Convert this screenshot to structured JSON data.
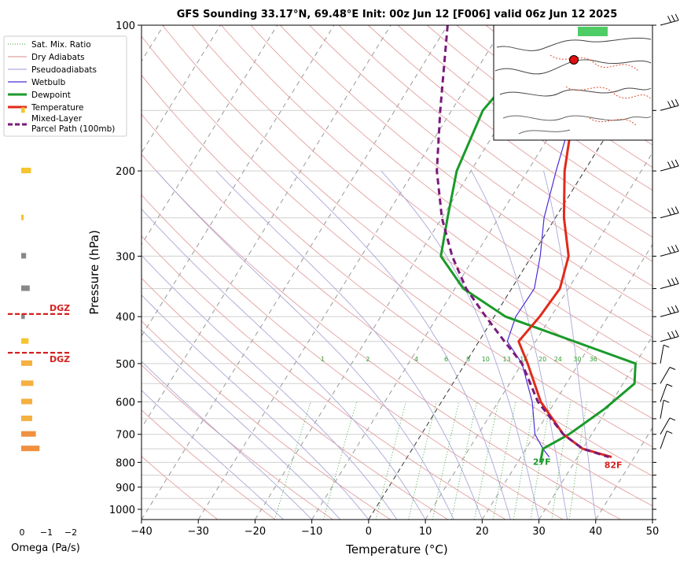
{
  "chart_data": {
    "type": "line",
    "chart_kind": "skew-T log-P sounding",
    "title": "GFS Sounding 33.17°N, 69.48°E Init: 00z Jun 12 [F006] valid 06z Jun 12 2025",
    "xlabel": "Temperature (°C)",
    "ylabel": "Pressure (hPa)",
    "xlim": [
      -40,
      50
    ],
    "ylim": [
      1050,
      100
    ],
    "y_scale": "log",
    "x_ticks": [
      -40,
      -30,
      -20,
      -10,
      0,
      10,
      20,
      30,
      40,
      50
    ],
    "x_tick_labels": [
      "−40",
      "−30",
      "−20",
      "−10",
      "0",
      "10",
      "20",
      "30",
      "40",
      "50"
    ],
    "y_ticks": [
      100,
      200,
      300,
      400,
      500,
      600,
      700,
      800,
      900,
      1000
    ],
    "grid": true,
    "legend_position": "upper-left-outside",
    "legend": [
      "Sat. Mix. Ratio",
      "Dry Adiabats",
      "Pseudoadiabats",
      "Wetbulb",
      "Dewpoint",
      "Temperature",
      "Mixed-Layer\nParcel Path (100mb)"
    ],
    "mixing_ratio_labels": [
      "1",
      "2",
      "4",
      "6",
      "8",
      "10",
      "13",
      "16",
      "20",
      "24",
      "30",
      "36"
    ],
    "series": [
      {
        "name": "Temperature",
        "color": "#e02a1a",
        "points": [
          [
            -11.5,
            100
          ],
          [
            -8.5,
            150
          ],
          [
            -3.5,
            200
          ],
          [
            1.5,
            250
          ],
          [
            6.5,
            300
          ],
          [
            8.5,
            350
          ],
          [
            8,
            400
          ],
          [
            7,
            450
          ],
          [
            11,
            500
          ],
          [
            17.5,
            600
          ],
          [
            25,
            700
          ],
          [
            30,
            750
          ],
          [
            36,
            780
          ]
        ]
      },
      {
        "name": "Dewpoint",
        "color": "#1a9a2a",
        "points": [
          [
            -21,
            100
          ],
          [
            -24.5,
            150
          ],
          [
            -22.5,
            200
          ],
          [
            -19,
            250
          ],
          [
            -16,
            300
          ],
          [
            -8.5,
            350
          ],
          [
            2,
            400
          ],
          [
            30,
            500
          ],
          [
            32,
            550
          ],
          [
            29.5,
            620
          ],
          [
            26,
            700
          ],
          [
            23,
            750
          ],
          [
            24,
            800
          ]
        ]
      },
      {
        "name": "Wetbulb",
        "color": "#4a2ed8",
        "points": [
          [
            -11.5,
            100
          ],
          [
            -8.5,
            150
          ],
          [
            -5,
            200
          ],
          [
            -2,
            250
          ],
          [
            1.5,
            300
          ],
          [
            4,
            350
          ],
          [
            3.8,
            400
          ],
          [
            5,
            450
          ],
          [
            10,
            500
          ],
          [
            16,
            600
          ],
          [
            20,
            700
          ],
          [
            23,
            750
          ],
          [
            25,
            780
          ]
        ]
      },
      {
        "name": "Mixed-Layer\nParcel Path (100mb)",
        "color": "#7a1a7a",
        "points": [
          [
            -40,
            100
          ],
          [
            -32,
            150
          ],
          [
            -26,
            200
          ],
          [
            -20,
            250
          ],
          [
            -14,
            300
          ],
          [
            -8,
            350
          ],
          [
            -1.5,
            400
          ],
          [
            4.5,
            450
          ],
          [
            10,
            500
          ],
          [
            17,
            600
          ],
          [
            25,
            700
          ],
          [
            30,
            750
          ],
          [
            35.5,
            780
          ]
        ]
      }
    ],
    "annotations": [
      "27F",
      "82F",
      "DGZ",
      "DGZ"
    ],
    "omega_panel": {
      "xlabel": "Omega (Pa/s)",
      "x_tick_labels": [
        "0",
        "−1",
        "−2"
      ],
      "bars": [
        {
          "p": 150,
          "omega": -0.15
        },
        {
          "p": 200,
          "omega": -0.4
        },
        {
          "p": 250,
          "omega": -0.1
        },
        {
          "p": 300,
          "omega": -0.2
        },
        {
          "p": 350,
          "omega": -0.35
        },
        {
          "p": 400,
          "omega": -0.15
        },
        {
          "p": 450,
          "omega": -0.3
        },
        {
          "p": 500,
          "omega": -0.45
        },
        {
          "p": 550,
          "omega": -0.5
        },
        {
          "p": 600,
          "omega": -0.45
        },
        {
          "p": 650,
          "omega": -0.45
        },
        {
          "p": 700,
          "omega": -0.6
        },
        {
          "p": 750,
          "omega": -0.75
        }
      ],
      "dgz_levels": [
        395,
        475
      ]
    },
    "wind_barbs_side": "right"
  },
  "ui": {
    "title": "GFS Sounding 33.17°N, 69.48°E Init: 00z Jun 12 [F006] valid 06z Jun 12 2025",
    "xlabel": "Temperature (°C)",
    "ylabel": "Pressure (hPa)",
    "omega_label": "Omega (Pa/s)",
    "dgz_label": "DGZ",
    "dew_end_label": "27F",
    "temp_end_label": "82F"
  }
}
